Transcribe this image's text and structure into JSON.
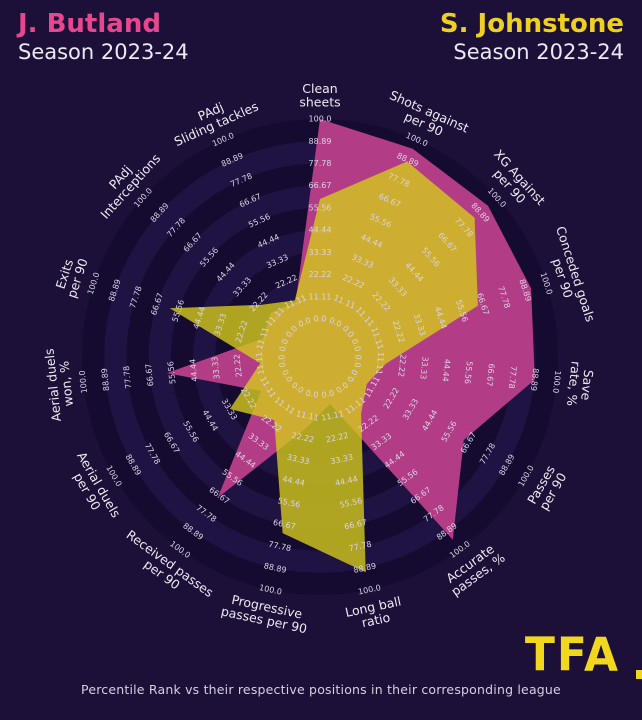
{
  "header": {
    "player_left": {
      "name": "J. Butland",
      "season": "Season 2023-24"
    },
    "player_right": {
      "name": "S. Johnstone",
      "season": "Season 2023-24"
    }
  },
  "footer": {
    "caption": "Percentile Rank vs their respective positions in their corresponding league",
    "logo": "TFA"
  },
  "colors": {
    "background": "#1d1038",
    "band_dark": "#150a2f",
    "band_light": "#1f1343",
    "tick_text": "#d9d4e6",
    "axis_label_text": "#eceaf2",
    "title_left": "#e8478f",
    "title_right": "#eed01f",
    "logo": "#f2d71f",
    "series_pink": "#b23c86",
    "series_yellow": "#d5cb1c"
  },
  "chart_data": {
    "type": "radar",
    "title": "Percentile Rank comparison radar",
    "scale": {
      "min": 0,
      "max": 100
    },
    "radial_ticks": [
      "0.0",
      "11.11",
      "22.22",
      "33.33",
      "44.44",
      "55.56",
      "66.67",
      "77.78",
      "88.89",
      "100.0"
    ],
    "axes": [
      {
        "label": "Clean sheets",
        "lines": [
          "Clean",
          "sheets"
        ]
      },
      {
        "label": "Shots against per 90",
        "lines": [
          "Shots against",
          "per 90"
        ]
      },
      {
        "label": "XG Against per 90",
        "lines": [
          "XG Against",
          "per 90"
        ]
      },
      {
        "label": "Conceded goals per 90",
        "lines": [
          "Conceded goals",
          "per 90"
        ]
      },
      {
        "label": "Save rate, %",
        "lines": [
          "Save",
          "rate, %"
        ]
      },
      {
        "label": "Passes per 90",
        "lines": [
          "Passes",
          "per 90"
        ]
      },
      {
        "label": "Accurate passes, %",
        "lines": [
          "Accurate",
          "passes, %"
        ]
      },
      {
        "label": "Long ball ratio",
        "lines": [
          "Long ball",
          "ratio"
        ]
      },
      {
        "label": "Progressive passes per 90",
        "lines": [
          "Progressive",
          "passes per 90"
        ]
      },
      {
        "label": "Received passes per 90",
        "lines": [
          "Received passes",
          "per 90"
        ]
      },
      {
        "label": "Aerial duels per 90",
        "lines": [
          "Aerial duels",
          "per 90"
        ]
      },
      {
        "label": "Aerial duels won, %",
        "lines": [
          "Aerial duels",
          "won, %"
        ]
      },
      {
        "label": "Exits per 90",
        "lines": [
          "Exits",
          "per 90"
        ]
      },
      {
        "label": "PAdj Interceptions",
        "lines": [
          "PAdj",
          "Interceptions"
        ]
      },
      {
        "label": "PAdj Sliding tackles",
        "lines": [
          "PAdj",
          "Sliding tackles"
        ]
      }
    ],
    "series": [
      {
        "name": "J. Butland",
        "color": "#b23c86",
        "opacity": 1.0,
        "values": [
          100,
          95,
          94,
          92,
          89,
          64,
          94,
          5,
          18,
          68,
          15,
          58,
          11,
          14,
          11
        ]
      },
      {
        "name": "S. Johnstone",
        "color": "#d5cb1c",
        "opacity": 0.8,
        "values": [
          60,
          88,
          85,
          64,
          14,
          8,
          16,
          91,
          71,
          20,
          33,
          11,
          60,
          20,
          12
        ]
      }
    ],
    "legend_position": "titles",
    "grid": "concentric-bands"
  }
}
